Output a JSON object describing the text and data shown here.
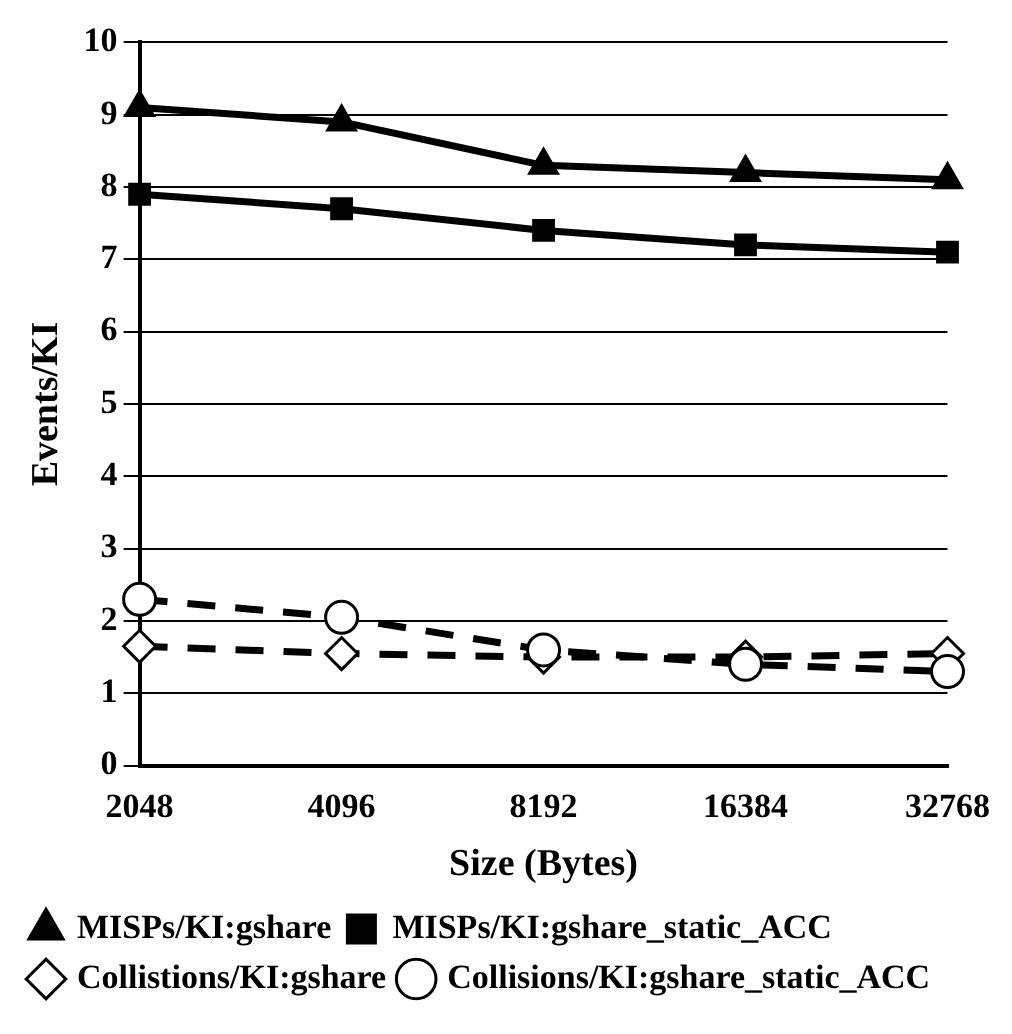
{
  "chart_data": {
    "type": "line",
    "xlabel": "Size (Bytes)",
    "ylabel": "Events/KI",
    "categories": [
      "2048",
      "4096",
      "8192",
      "16384",
      "32768"
    ],
    "series": [
      {
        "name": "MISPs/KI:gshare",
        "color": "#000000",
        "marker": "triangle",
        "line_style": "solid",
        "values": [
          9.1,
          8.9,
          8.3,
          8.2,
          8.1
        ]
      },
      {
        "name": "MISPs/KI:gshare_static_ACC",
        "color": "#000000",
        "marker": "square",
        "line_style": "solid",
        "values": [
          7.9,
          7.7,
          7.4,
          7.2,
          7.1
        ]
      },
      {
        "name": "Collistions/KI:gshare",
        "color": "#000000",
        "marker": "diamond",
        "line_style": "dashed",
        "values": [
          1.65,
          1.55,
          1.5,
          1.5,
          1.55
        ]
      },
      {
        "name": "Collisions/KI:gshare_static_ACC",
        "color": "#000000",
        "marker": "circle",
        "line_style": "dashed",
        "values": [
          2.3,
          2.05,
          1.6,
          1.4,
          1.3
        ]
      }
    ],
    "ylim": [
      0,
      10
    ],
    "yticks": [
      0,
      1,
      2,
      3,
      4,
      5,
      6,
      7,
      8,
      9,
      10
    ],
    "grid": "y",
    "legend": "bottom"
  }
}
